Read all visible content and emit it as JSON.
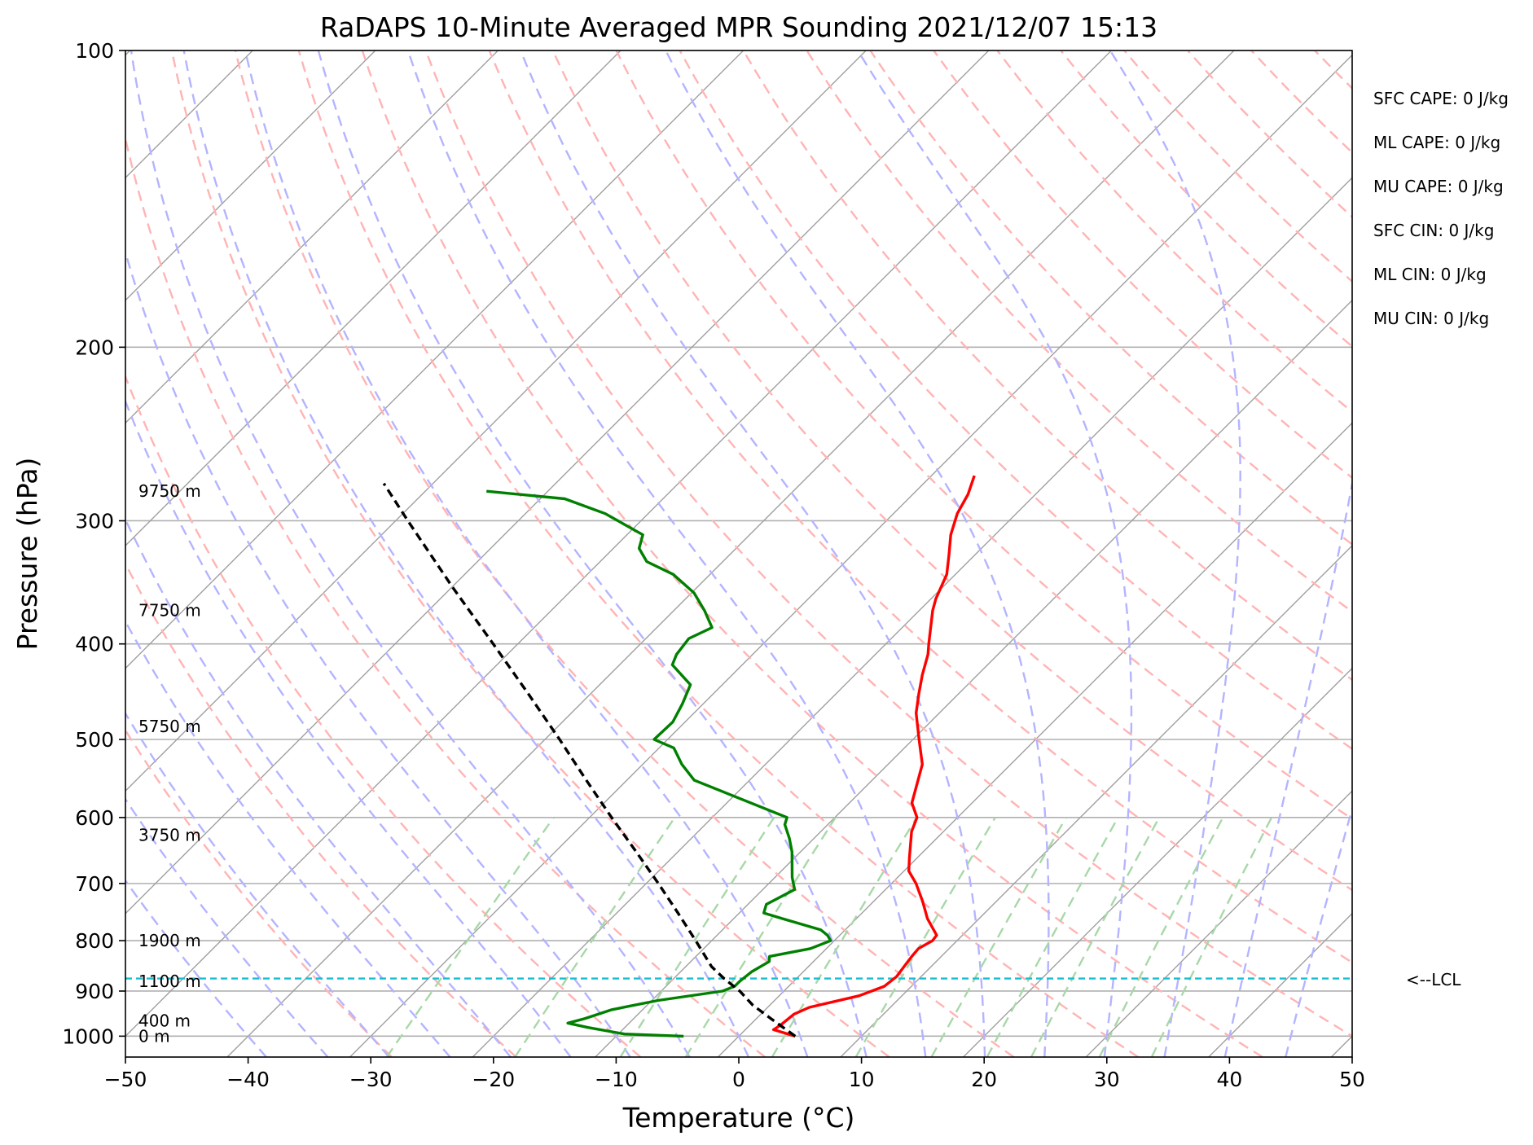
{
  "chart_data": {
    "type": "line",
    "title": "RaDAPS 10-Minute Averaged MPR Sounding 2021/12/07 15:13",
    "xlabel": "Temperature (°C)",
    "ylabel": "Pressure (hPa)",
    "xlim": [
      -50,
      50
    ],
    "ylim": [
      1050,
      100
    ],
    "y_scale": "log",
    "x_ticks": [
      "−50",
      "−40",
      "−30",
      "−20",
      "−10",
      "0",
      "10",
      "20",
      "30",
      "40",
      "50"
    ],
    "y_ticks": [
      "100",
      "200",
      "300",
      "400",
      "500",
      "600",
      "700",
      "800",
      "900",
      "1000"
    ],
    "x_tick_values": [
      -50,
      -40,
      -30,
      -20,
      -10,
      0,
      10,
      20,
      30,
      40,
      50
    ],
    "y_tick_values": [
      100,
      200,
      300,
      400,
      500,
      600,
      700,
      800,
      900,
      1000
    ],
    "grid": true,
    "skew_t": true,
    "series": [
      {
        "key": "temperature",
        "color": "#ff0000",
        "points": [
          [
            1000,
            4.6
          ],
          [
            985,
            2.3
          ],
          [
            975,
            2.5
          ],
          [
            950,
            2.7
          ],
          [
            935,
            3.4
          ],
          [
            910,
            6.5
          ],
          [
            890,
            7.8
          ],
          [
            870,
            8.0
          ],
          [
            850,
            7.8
          ],
          [
            830,
            7.6
          ],
          [
            815,
            7.5
          ],
          [
            800,
            8.0
          ],
          [
            790,
            7.9
          ],
          [
            760,
            5.8
          ],
          [
            730,
            4.0
          ],
          [
            700,
            2.0
          ],
          [
            680,
            0.4
          ],
          [
            660,
            -0.6
          ],
          [
            620,
            -2.6
          ],
          [
            600,
            -3.3
          ],
          [
            580,
            -4.9
          ],
          [
            530,
            -7.2
          ],
          [
            500,
            -9.5
          ],
          [
            470,
            -11.9
          ],
          [
            450,
            -13.2
          ],
          [
            430,
            -14.5
          ],
          [
            410,
            -15.7
          ],
          [
            400,
            -16.5
          ],
          [
            370,
            -18.9
          ],
          [
            360,
            -19.6
          ],
          [
            340,
            -20.7
          ],
          [
            325,
            -22.1
          ],
          [
            310,
            -23.6
          ],
          [
            295,
            -24.8
          ],
          [
            282,
            -25.5
          ],
          [
            270,
            -26.5
          ]
        ]
      },
      {
        "key": "dewpoint",
        "color": "#008000",
        "points": [
          [
            1000,
            -4.5
          ],
          [
            995,
            -9.5
          ],
          [
            980,
            -13.0
          ],
          [
            970,
            -15.0
          ],
          [
            960,
            -14.0
          ],
          [
            940,
            -12.5
          ],
          [
            920,
            -9.5
          ],
          [
            900,
            -5.0
          ],
          [
            890,
            -4.4
          ],
          [
            880,
            -4.4
          ],
          [
            860,
            -4.2
          ],
          [
            840,
            -3.6
          ],
          [
            830,
            -4.0
          ],
          [
            815,
            -1.3
          ],
          [
            800,
            -0.3
          ],
          [
            790,
            -1.0
          ],
          [
            780,
            -2.0
          ],
          [
            760,
            -6.0
          ],
          [
            750,
            -8.0
          ],
          [
            735,
            -8.5
          ],
          [
            710,
            -7.4
          ],
          [
            700,
            -8.0
          ],
          [
            690,
            -8.6
          ],
          [
            650,
            -10.7
          ],
          [
            630,
            -12.0
          ],
          [
            610,
            -13.5
          ],
          [
            600,
            -13.9
          ],
          [
            550,
            -24.5
          ],
          [
            530,
            -26.8
          ],
          [
            510,
            -28.8
          ],
          [
            500,
            -31.1
          ],
          [
            480,
            -31.0
          ],
          [
            460,
            -31.7
          ],
          [
            440,
            -32.6
          ],
          [
            420,
            -35.7
          ],
          [
            410,
            -36.2
          ],
          [
            395,
            -36.5
          ],
          [
            385,
            -35.5
          ],
          [
            370,
            -37.5
          ],
          [
            355,
            -39.8
          ],
          [
            340,
            -43.0
          ],
          [
            330,
            -46.2
          ],
          [
            320,
            -47.9
          ],
          [
            310,
            -48.7
          ],
          [
            295,
            -53.5
          ],
          [
            285,
            -58.0
          ],
          [
            280,
            -65.0
          ]
        ]
      },
      {
        "key": "parcel",
        "color": "#000000",
        "points": [
          [
            1000,
            4.6
          ],
          [
            960,
            1.2
          ],
          [
            930,
            -1.4
          ],
          [
            900,
            -3.6
          ],
          [
            874,
            -5.9
          ],
          [
            850,
            -7.9
          ],
          [
            800,
            -11.3
          ],
          [
            750,
            -15.0
          ],
          [
            700,
            -19.0
          ],
          [
            650,
            -23.4
          ],
          [
            600,
            -28.2
          ],
          [
            550,
            -33.3
          ],
          [
            500,
            -38.8
          ],
          [
            450,
            -45.0
          ],
          [
            400,
            -52.0
          ],
          [
            350,
            -60.0
          ],
          [
            300,
            -69.0
          ],
          [
            275,
            -74.0
          ]
        ]
      }
    ],
    "lcl_pressure": 874,
    "lcl_label": "<--LCL",
    "height_labels": [
      {
        "text": "9750 m",
        "p": 280
      },
      {
        "text": "7750 m",
        "p": 370
      },
      {
        "text": "5750 m",
        "p": 485
      },
      {
        "text": "3750 m",
        "p": 625
      },
      {
        "text": "1900 m",
        "p": 800
      },
      {
        "text": "1100 m",
        "p": 880
      },
      {
        "text": "400 m",
        "p": 965
      },
      {
        "text": "0 m",
        "p": 1000
      }
    ],
    "indices": [
      "SFC CAPE: 0 J/kg",
      "ML CAPE: 0 J/kg",
      "MU CAPE: 0 J/kg",
      "SFC CIN: 0 J/kg",
      "ML CIN: 0 J/kg",
      "MU CIN: 0 J/kg"
    ],
    "colors": {
      "isotherm": "#a0a0a0",
      "isobar": "#b0b0b0",
      "dry_adiabat": "#ffb4b4",
      "moist_adiabat": "#b4b4ff",
      "mixing_ratio": "#a8d8a8",
      "lcl_line": "#17becf"
    }
  }
}
